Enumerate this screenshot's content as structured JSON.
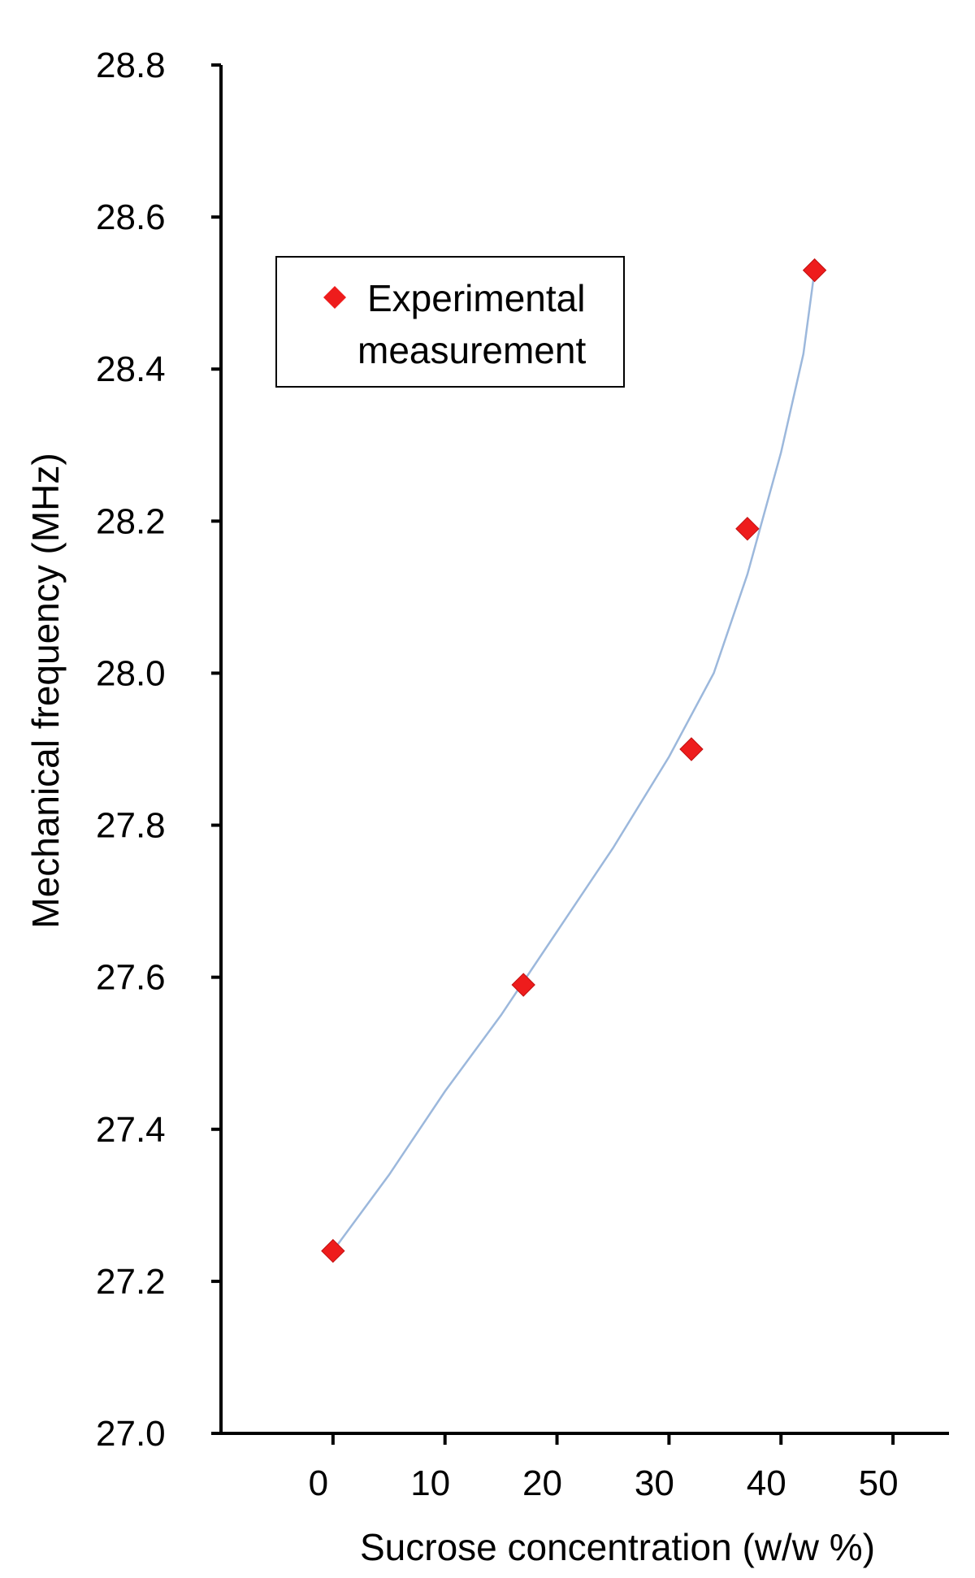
{
  "chart_data": {
    "type": "scatter",
    "title": "",
    "xlabel": "Sucrose concentration (w/w %)",
    "ylabel": "Mechanical frequency (MHz)",
    "xlim": [
      -10,
      55
    ],
    "ylim": [
      27.0,
      28.8
    ],
    "x_ticks": [
      0,
      10,
      20,
      30,
      40,
      50
    ],
    "y_ticks": [
      27.0,
      27.2,
      27.4,
      27.6,
      27.8,
      28.0,
      28.2,
      28.4,
      28.6,
      28.8
    ],
    "grid": false,
    "legend_position": "top-left",
    "series": [
      {
        "name": "Experimental measurement",
        "color": "#ee1c1c",
        "marker": "diamond",
        "points": [
          {
            "x": 0,
            "y": 27.24
          },
          {
            "x": 17,
            "y": 27.59
          },
          {
            "x": 32,
            "y": 27.9
          },
          {
            "x": 37,
            "y": 28.19
          },
          {
            "x": 43,
            "y": 28.53
          }
        ]
      }
    ],
    "trendline": {
      "color": "#9cb8dc",
      "points": [
        {
          "x": 0,
          "y": 27.24
        },
        {
          "x": 5,
          "y": 27.34
        },
        {
          "x": 10,
          "y": 27.45
        },
        {
          "x": 15,
          "y": 27.55
        },
        {
          "x": 20,
          "y": 27.66
        },
        {
          "x": 25,
          "y": 27.77
        },
        {
          "x": 30,
          "y": 27.89
        },
        {
          "x": 34,
          "y": 28.0
        },
        {
          "x": 37,
          "y": 28.13
        },
        {
          "x": 40,
          "y": 28.29
        },
        {
          "x": 42,
          "y": 28.42
        },
        {
          "x": 43,
          "y": 28.53
        }
      ]
    },
    "legend": {
      "lines": [
        "Experimental",
        "measurement"
      ]
    }
  }
}
